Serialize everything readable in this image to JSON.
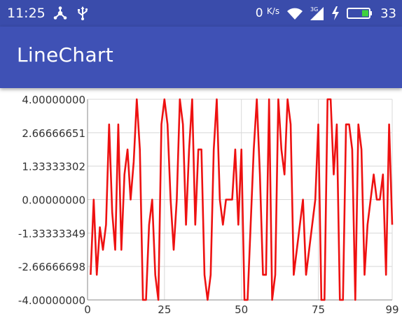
{
  "status_bar": {
    "time": "11:25",
    "left_icons": [
      "share-network-icon",
      "usb-icon"
    ],
    "speed_value": "0",
    "speed_unit": "K/s",
    "right_icons": [
      "wifi-icon",
      "signal-3g-icon",
      "charging-bolt-icon",
      "battery-icon"
    ],
    "battery_percent": "33"
  },
  "app_bar": {
    "title": "LineChart",
    "color": "#3f51b5",
    "status_color": "#3a4cab"
  },
  "chart_data": {
    "type": "line",
    "title": "",
    "xlabel": "",
    "ylabel": "",
    "xlim": [
      0,
      99
    ],
    "ylim": [
      -4,
      4
    ],
    "x_ticks": [
      0,
      25,
      50,
      75,
      99
    ],
    "x_tick_labels": [
      "0",
      "25",
      "50",
      "75",
      "99"
    ],
    "y_ticks": [
      4,
      2.66666651,
      1.33333302,
      0,
      -1.33333349,
      -2.66666698,
      -4
    ],
    "y_tick_labels": [
      "4.00000000",
      "2.66666651",
      "1.33333302",
      "0.00000000",
      "-1.33333349",
      "-2.66666698",
      "-4.00000000"
    ],
    "grid": true,
    "legend": "none",
    "series": [
      {
        "color": "#ee1111",
        "x": [
          1,
          2,
          3,
          4,
          5,
          6,
          7,
          8,
          9,
          10,
          11,
          12,
          13,
          14,
          15,
          16,
          17,
          18,
          19,
          20,
          21,
          22,
          23,
          24,
          25,
          26,
          27,
          28,
          29,
          30,
          31,
          32,
          33,
          34,
          35,
          36,
          37,
          38,
          39,
          40,
          41,
          42,
          43,
          44,
          45,
          46,
          47,
          48,
          49,
          50,
          51,
          52,
          53,
          54,
          55,
          56,
          57,
          58,
          59,
          60,
          61,
          62,
          63,
          64,
          65,
          66,
          67,
          68,
          69,
          70,
          71,
          72,
          73,
          74,
          75,
          76,
          77,
          78,
          79,
          80,
          81,
          82,
          83,
          84,
          85,
          86,
          87,
          88,
          89,
          90,
          91,
          92,
          93,
          94,
          95,
          96,
          97,
          98,
          99
        ],
        "y": [
          -3,
          0,
          -3,
          -1.1,
          -2,
          -1,
          3,
          -0.5,
          -2,
          3,
          -2,
          1,
          2,
          0,
          1.5,
          4,
          2,
          -4,
          -4,
          -1,
          0,
          -3,
          -4,
          3,
          4,
          3,
          0,
          -2,
          0,
          4,
          3,
          -1,
          2,
          4,
          -1,
          2,
          2,
          -3,
          -4,
          -3,
          2,
          4,
          0,
          -1,
          0,
          0,
          0,
          2,
          -1,
          2,
          -4,
          -4,
          -1,
          2,
          4,
          1,
          -3,
          -3,
          4,
          -4,
          -3,
          4,
          2,
          1,
          4,
          3,
          -3,
          -2,
          -1,
          0,
          -3,
          -2,
          -1,
          0,
          3,
          -4,
          -4,
          4,
          4,
          1,
          3,
          -4,
          -4,
          3,
          3,
          2,
          -4,
          3,
          2,
          -3,
          -1,
          0,
          1,
          0,
          0,
          1,
          -3,
          3,
          -1
        ]
      }
    ]
  }
}
